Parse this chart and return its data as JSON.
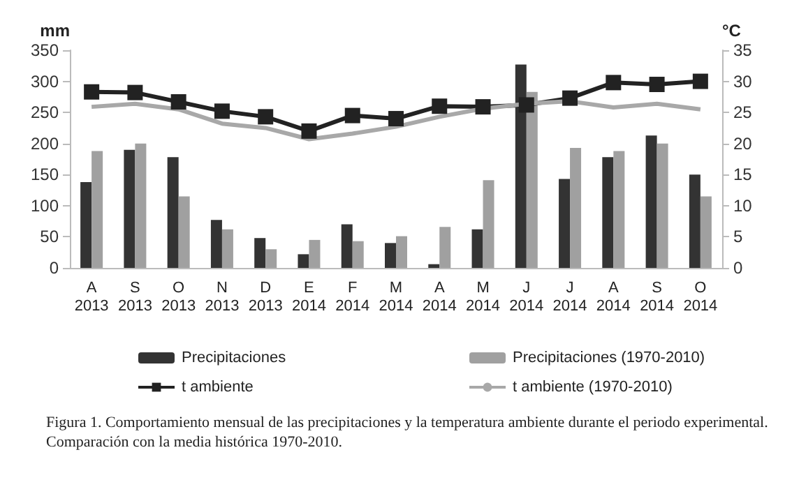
{
  "chart_data": {
    "type": "bar",
    "ylabel": "mm",
    "y2label": "°C",
    "categories": [
      "A\n2013",
      "S\n2013",
      "O\n2013",
      "N\n2013",
      "D\n2013",
      "E\n2014",
      "F\n2014",
      "M\n2014",
      "A\n2014",
      "M\n2014",
      "J\n2014",
      "J\n2014",
      "A\n2014",
      "S\n2014",
      "O\n2014"
    ],
    "series": [
      {
        "name": "Precipitaciones",
        "color": "#333333",
        "values": [
          138,
          190,
          178,
          77,
          48,
          22,
          70,
          40,
          6,
          62,
          327,
          143,
          178,
          213,
          150
        ]
      },
      {
        "name": "Precipitaciones (1970-2010)",
        "color": "#a0a0a0",
        "values": [
          188,
          200,
          115,
          62,
          30,
          45,
          43,
          51,
          66,
          141,
          283,
          193,
          188,
          200,
          115
        ]
      },
      {
        "name": "t ambiente",
        "type": "line",
        "axis": "y2",
        "marker": "square",
        "color": "#222222",
        "values": [
          28.3,
          28.2,
          26.7,
          25.2,
          24.3,
          22.0,
          24.5,
          24.0,
          26.0,
          25.9,
          26.2,
          27.3,
          29.8,
          29.5,
          30.0
        ]
      },
      {
        "name": "t ambiente (1970-2010)",
        "type": "line",
        "axis": "y2",
        "marker": "none",
        "color": "#a8a8a8",
        "values": [
          25.9,
          26.4,
          25.5,
          23.2,
          22.5,
          20.7,
          21.6,
          22.7,
          24.3,
          25.6,
          26.4,
          26.8,
          25.8,
          26.4,
          25.5
        ]
      }
    ],
    "ylim": [
      0,
      350
    ],
    "yticks": [
      0,
      50,
      100,
      150,
      200,
      250,
      300,
      350
    ],
    "y2lim": [
      0,
      35
    ],
    "y2ticks": [
      0,
      5,
      10,
      15,
      20,
      25,
      30,
      35
    ],
    "grid": false,
    "legend": "bottom",
    "annotations": [
      "Figura 1. Comportamiento mensual de las precipitaciones y la temperatura ambiente durante el periodo experimental. Comparación con la media histórica 1970-2010."
    ]
  }
}
